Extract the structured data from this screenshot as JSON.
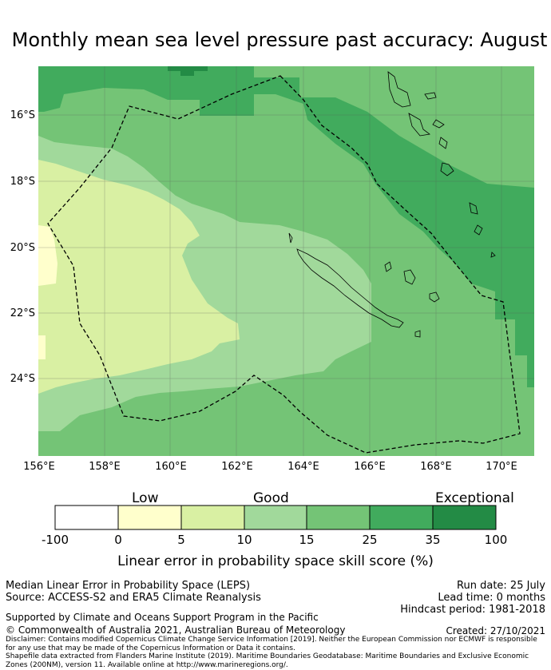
{
  "title": "Monthly mean sea level pressure past accuracy: August",
  "map": {
    "lat_labels": [
      "16°S",
      "18°S",
      "20°S",
      "22°S",
      "24°S"
    ],
    "lon_labels": [
      "156°E",
      "158°E",
      "160°E",
      "162°E",
      "164°E",
      "166°E",
      "168°E",
      "170°E"
    ],
    "colors": {
      "exceptional": "#238b45",
      "very_high": "#41ab5d",
      "high": "#74c476",
      "good": "#a1d99b",
      "moderate": "#d9f0a3",
      "low": "#ffffcc",
      "none": "#ffffff",
      "grid": "#555555"
    }
  },
  "colorbar": {
    "categories": [
      "Low",
      "Good",
      "Exceptional"
    ],
    "ticks": [
      "-100",
      "0",
      "5",
      "10",
      "15",
      "25",
      "35",
      "100"
    ],
    "label": "Linear error in probability space skill score (%)",
    "bins": [
      {
        "from": -100,
        "to": 0,
        "color": "#ffffff"
      },
      {
        "from": 0,
        "to": 5,
        "color": "#ffffcc"
      },
      {
        "from": 5,
        "to": 10,
        "color": "#d9f0a3"
      },
      {
        "from": 10,
        "to": 15,
        "color": "#a1d99b"
      },
      {
        "from": 15,
        "to": 25,
        "color": "#74c476"
      },
      {
        "from": 25,
        "to": 35,
        "color": "#41ab5d"
      },
      {
        "from": 35,
        "to": 100,
        "color": "#238b45"
      }
    ]
  },
  "info": {
    "metric": "Median Linear Error in Probability Space (LEPS)",
    "source": "Source: ACCESS-S2 and ERA5 Climate Reanalysis",
    "run_date": "Run date: 25 July",
    "lead_time": "Lead time: 0 months",
    "hindcast": "Hindcast period: 1981-2018",
    "supported": "Supported by Climate and Oceans Support Program in the Pacific",
    "copyright": "© Commonwealth of Australia 2021, Australian Bureau of Meteorology",
    "created": "Created: 27/10/2021",
    "disclaimer1": "Disclaimer: Contains modified Copernicus Climate Change Service Information [2019]. Neither the European Commission nor ECMWF is responsible for any use that may be made of the Copernicus Information or Data it contains.",
    "disclaimer2": "Shapefile data extracted from Flanders Marine Institute (2019). Maritime Boundaries Geodatabase: Maritime Boundaries and Exclusive Economic Zones (200NM), version 11. Available online at http://www.marineregions.org/."
  }
}
